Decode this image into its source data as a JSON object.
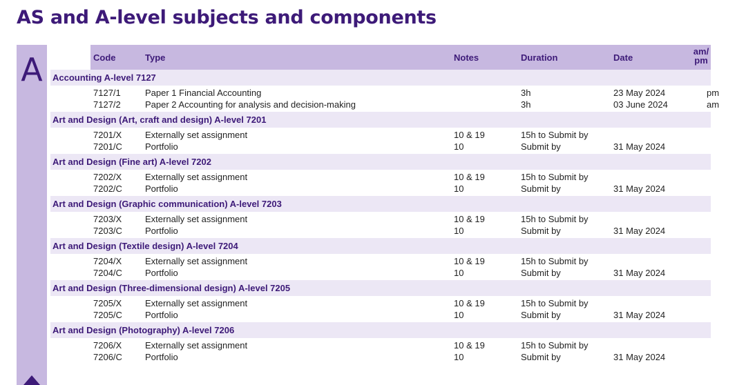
{
  "title": "AS and A-level subjects and components",
  "section_letter": "A",
  "headers": {
    "code": "Code",
    "type": "Type",
    "notes": "Notes",
    "duration": "Duration",
    "date": "Date",
    "ampm_1": "am/",
    "ampm_2": "pm"
  },
  "subjects": [
    {
      "name": "Accounting A-level  7127",
      "components": [
        {
          "code": "7127/1",
          "type": "Paper 1 Financial Accounting",
          "notes": "",
          "duration": "3h",
          "date": "23 May 2024",
          "ampm": "pm"
        },
        {
          "code": "7127/2",
          "type": "Paper 2 Accounting for analysis and decision-making",
          "notes": "",
          "duration": "3h",
          "date": "03 June 2024",
          "ampm": "am"
        }
      ]
    },
    {
      "name": "Art and Design (Art, craft and design) A-level  7201",
      "components": [
        {
          "code": "7201/X",
          "type": "Externally set assignment",
          "notes": "10 & 19",
          "duration": "15h to Submit by",
          "date": "",
          "ampm": ""
        },
        {
          "code": "7201/C",
          "type": "Portfolio",
          "notes": "10",
          "duration": "Submit by",
          "date": "31 May 2024",
          "ampm": ""
        }
      ]
    },
    {
      "name": "Art and Design (Fine art) A-level  7202",
      "components": [
        {
          "code": "7202/X",
          "type": "Externally set assignment",
          "notes": "10 & 19",
          "duration": "15h to Submit by",
          "date": "",
          "ampm": ""
        },
        {
          "code": "7202/C",
          "type": "Portfolio",
          "notes": "10",
          "duration": "Submit by",
          "date": "31 May 2024",
          "ampm": ""
        }
      ]
    },
    {
      "name": "Art and Design (Graphic communication) A-level  7203",
      "components": [
        {
          "code": "7203/X",
          "type": "Externally set assignment",
          "notes": "10 & 19",
          "duration": "15h to Submit by",
          "date": "",
          "ampm": ""
        },
        {
          "code": "7203/C",
          "type": "Portfolio",
          "notes": "10",
          "duration": "Submit by",
          "date": "31 May 2024",
          "ampm": ""
        }
      ]
    },
    {
      "name": "Art and Design (Textile design) A-level  7204",
      "components": [
        {
          "code": "7204/X",
          "type": "Externally set assignment",
          "notes": "10 & 19",
          "duration": "15h to Submit by",
          "date": "",
          "ampm": ""
        },
        {
          "code": "7204/C",
          "type": "Portfolio",
          "notes": "10",
          "duration": "Submit by",
          "date": "31 May 2024",
          "ampm": ""
        }
      ]
    },
    {
      "name": "Art and Design (Three-dimensional design) A-level  7205",
      "components": [
        {
          "code": "7205/X",
          "type": "Externally set assignment",
          "notes": "10 & 19",
          "duration": "15h to Submit by",
          "date": "",
          "ampm": ""
        },
        {
          "code": "7205/C",
          "type": "Portfolio",
          "notes": "10",
          "duration": "Submit by",
          "date": "31 May 2024",
          "ampm": ""
        }
      ]
    },
    {
      "name": "Art and Design (Photography) A-level  7206",
      "components": [
        {
          "code": "7206/X",
          "type": "Externally set assignment",
          "notes": "10 & 19",
          "duration": "15h to Submit by",
          "date": "",
          "ampm": ""
        },
        {
          "code": "7206/C",
          "type": "Portfolio",
          "notes": "10",
          "duration": "Submit by",
          "date": "31 May 2024",
          "ampm": ""
        }
      ]
    }
  ]
}
